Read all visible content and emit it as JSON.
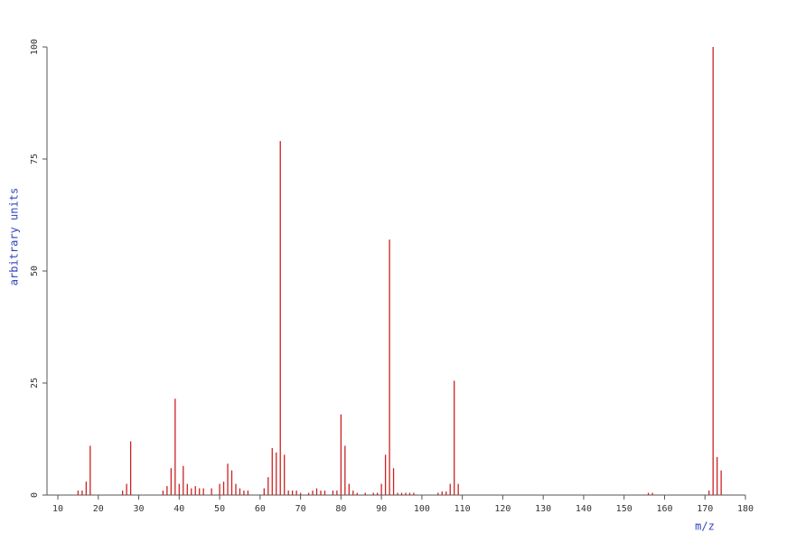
{
  "chart_data": {
    "type": "bar",
    "color": "#cc2222",
    "x_label": "m/z",
    "y_label": "arbitrary units",
    "x": [
      15,
      16,
      17,
      18,
      26,
      27,
      28,
      36,
      37,
      38,
      39,
      40,
      41,
      42,
      43,
      44,
      45,
      46,
      48,
      50,
      51,
      52,
      53,
      54,
      55,
      56,
      57,
      61,
      62,
      63,
      64,
      65,
      66,
      67,
      68,
      69,
      70,
      72,
      73,
      74,
      75,
      76,
      78,
      79,
      80,
      81,
      82,
      83,
      84,
      86,
      88,
      89,
      90,
      91,
      92,
      93,
      94,
      95,
      96,
      97,
      98,
      104,
      105,
      106,
      107,
      108,
      109,
      156,
      157,
      171,
      172,
      173,
      174
    ],
    "values": [
      1,
      1,
      3,
      11,
      1,
      2.5,
      12,
      1,
      2,
      6,
      21.5,
      2.5,
      6.5,
      2.5,
      1.5,
      2,
      1.5,
      1.5,
      1.5,
      2.5,
      3,
      7,
      5.5,
      2.5,
      1.5,
      1,
      1,
      1.5,
      4,
      10.5,
      9.5,
      79,
      9,
      1,
      1,
      1,
      0.5,
      0.5,
      1,
      1.5,
      1,
      1,
      1,
      1,
      18,
      11,
      2.5,
      1,
      0.5,
      0.5,
      0.5,
      0.5,
      2.5,
      9,
      57,
      6,
      0.5,
      0.5,
      0.5,
      0.5,
      0.5,
      0.5,
      0.8,
      0.8,
      2.5,
      25.5,
      2.5,
      0.5,
      0.5,
      1,
      100,
      8.5,
      5.5
    ],
    "xlim": [
      7,
      180
    ],
    "xticks": [
      10,
      20,
      30,
      40,
      50,
      60,
      70,
      80,
      90,
      100,
      110,
      120,
      130,
      140,
      150,
      160,
      170,
      180
    ],
    "ylim": [
      0,
      100
    ],
    "yticks": [
      0,
      25,
      50,
      75,
      100
    ]
  }
}
